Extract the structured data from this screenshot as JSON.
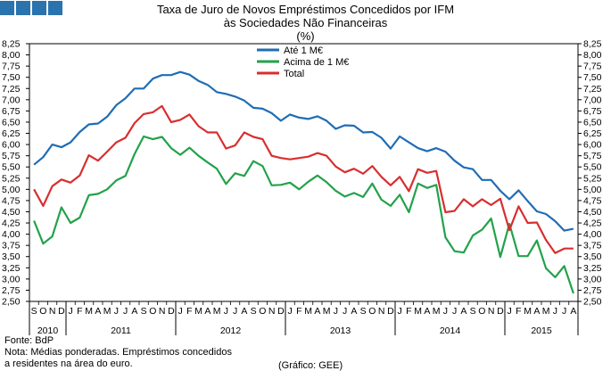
{
  "header": {
    "title_line1": "Taxa de Juro de Novos Empréstimos Concedidos por IFM",
    "title_line2": "às Sociedades Não Financeiras",
    "unit": "(%)"
  },
  "footer": {
    "source": "Fonte: BdP",
    "note_line1": "Nota: Médias ponderadas. Empréstimos concedidos",
    "note_line2": "a residentes na área do euro.",
    "credit": "(Gráfico: GEE)"
  },
  "chart_data": {
    "type": "line",
    "ylim": [
      2.5,
      8.25
    ],
    "yticks": [
      "2,50",
      "2,75",
      "3,00",
      "3,25",
      "3,50",
      "3,75",
      "4,00",
      "4,25",
      "4,50",
      "4,75",
      "5,00",
      "5,25",
      "5,50",
      "5,75",
      "6,00",
      "6,25",
      "6,50",
      "6,75",
      "7,00",
      "7,25",
      "7,50",
      "7,75",
      "8,00",
      "8,25"
    ],
    "month_labels": [
      "S",
      "O",
      "N",
      "D",
      "J",
      "F",
      "M",
      "A",
      "M",
      "J",
      "J",
      "A",
      "S",
      "O",
      "N",
      "D",
      "J",
      "F",
      "M",
      "A",
      "M",
      "J",
      "J",
      "A",
      "S",
      "O",
      "N",
      "D",
      "J",
      "F",
      "M",
      "A",
      "M",
      "J",
      "J",
      "A",
      "S",
      "O",
      "N",
      "D",
      "J",
      "F",
      "M",
      "A",
      "M",
      "J",
      "J",
      "A",
      "S",
      "O",
      "N",
      "D",
      "J",
      "F",
      "M",
      "A",
      "M",
      "J",
      "J",
      "A"
    ],
    "years": [
      {
        "label": "2010",
        "start": 0,
        "end": 4
      },
      {
        "label": "2011",
        "start": 4,
        "end": 16
      },
      {
        "label": "2012",
        "start": 16,
        "end": 28
      },
      {
        "label": "2013",
        "start": 28,
        "end": 40
      },
      {
        "label": "2014",
        "start": 40,
        "end": 52
      },
      {
        "label": "2015",
        "start": 52,
        "end": 60
      }
    ],
    "series": [
      {
        "name": "Até 1 M€",
        "color": "#1f6db5",
        "values": [
          5.55,
          5.72,
          6.0,
          5.94,
          6.05,
          6.28,
          6.45,
          6.47,
          6.62,
          6.88,
          7.03,
          7.25,
          7.25,
          7.47,
          7.55,
          7.55,
          7.62,
          7.56,
          7.42,
          7.33,
          7.17,
          7.13,
          7.07,
          6.98,
          6.82,
          6.8,
          6.7,
          6.53,
          6.67,
          6.6,
          6.57,
          6.63,
          6.53,
          6.35,
          6.43,
          6.42,
          6.27,
          6.28,
          6.15,
          5.91,
          6.18,
          6.05,
          5.92,
          5.85,
          5.92,
          5.84,
          5.64,
          5.49,
          5.45,
          5.21,
          5.21,
          4.97,
          4.78,
          4.98,
          4.74,
          4.51,
          4.45,
          4.29,
          4.08,
          4.12
        ]
      },
      {
        "name": "Acima de 1 M€",
        "color": "#22a24a",
        "values": [
          4.3,
          3.79,
          3.95,
          4.6,
          4.25,
          4.37,
          4.87,
          4.9,
          5.0,
          5.2,
          5.3,
          5.79,
          6.18,
          6.12,
          6.17,
          5.92,
          5.77,
          5.93,
          5.75,
          5.6,
          5.46,
          5.12,
          5.36,
          5.3,
          5.63,
          5.52,
          5.09,
          5.1,
          5.15,
          5.0,
          5.17,
          5.31,
          5.16,
          4.97,
          4.84,
          4.92,
          4.83,
          5.13,
          4.77,
          4.63,
          4.88,
          4.49,
          5.13,
          5.03,
          5.1,
          3.93,
          3.62,
          3.59,
          3.97,
          4.1,
          4.35,
          3.49,
          4.23,
          3.51,
          3.51,
          3.86,
          3.24,
          3.04,
          3.29,
          2.68
        ]
      },
      {
        "name": "Total",
        "color": "#d92e2e",
        "values": [
          5.0,
          4.63,
          5.07,
          5.22,
          5.15,
          5.31,
          5.76,
          5.64,
          5.84,
          6.05,
          6.15,
          6.48,
          6.68,
          6.72,
          6.86,
          6.5,
          6.55,
          6.67,
          6.41,
          6.27,
          6.27,
          5.91,
          5.98,
          6.27,
          6.17,
          6.12,
          5.75,
          5.7,
          5.67,
          5.7,
          5.73,
          5.81,
          5.75,
          5.51,
          5.38,
          5.46,
          5.35,
          5.52,
          5.28,
          5.09,
          5.28,
          4.96,
          5.45,
          5.37,
          5.41,
          4.49,
          4.52,
          4.78,
          4.62,
          4.78,
          4.65,
          4.79,
          4.09,
          4.62,
          4.25,
          4.26,
          3.87,
          3.58,
          3.68,
          3.68
        ]
      }
    ]
  }
}
